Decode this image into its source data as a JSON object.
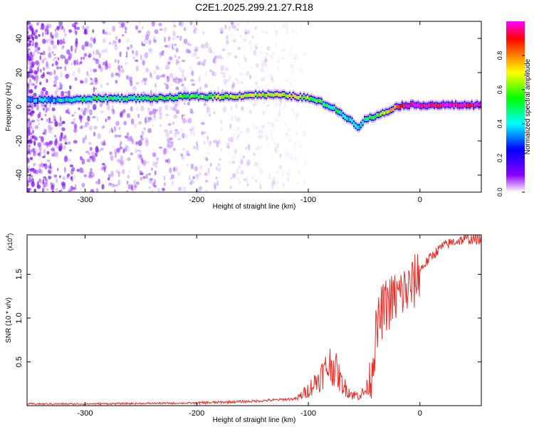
{
  "title": "C2E1.2025.299.21.27.R18",
  "chart_data": [
    {
      "type": "heatmap",
      "name": "spectrogram",
      "xlabel": "Height of straight line (km)",
      "ylabel": "Frequency (Hz)",
      "xlim": [
        -352,
        55
      ],
      "ylim": [
        -50,
        50
      ],
      "xticks": [
        -300,
        -200,
        -100,
        0
      ],
      "yticks": [
        -40,
        -20,
        0,
        20,
        40
      ],
      "ridge": {
        "description": "frequency of the peak spectral amplitude vs height",
        "x": [
          -350,
          -330,
          -310,
          -290,
          -270,
          -250,
          -230,
          -210,
          -190,
          -170,
          -150,
          -130,
          -110,
          -100,
          -90,
          -80,
          -70,
          -60,
          -55,
          -50,
          -45,
          -40,
          -35,
          -30,
          -25,
          -20,
          -15,
          -10,
          0,
          20,
          55
        ],
        "freq": [
          4,
          4,
          4,
          5,
          5,
          5,
          5,
          6,
          6,
          6,
          7,
          7,
          6,
          5,
          3,
          0,
          -4,
          -9,
          -12,
          -8,
          -6,
          -6,
          -4,
          -3,
          -1,
          0,
          1,
          1,
          1,
          1,
          1
        ],
        "amplitude": [
          0.35,
          0.35,
          0.4,
          0.45,
          0.45,
          0.45,
          0.5,
          0.5,
          0.55,
          0.6,
          0.6,
          0.6,
          0.65,
          0.55,
          0.5,
          0.45,
          0.4,
          0.35,
          0.35,
          0.45,
          0.5,
          0.5,
          0.55,
          0.6,
          0.7,
          0.8,
          0.9,
          0.95,
          0.95,
          0.95,
          0.95
        ]
      },
      "colorbar": {
        "label": "Normalized spectral amplitude",
        "min": 0.0,
        "max": 1.0,
        "ticks": [
          0.0,
          0.2,
          0.4,
          0.6,
          0.8
        ],
        "colors": [
          "#ffffff",
          "#8a00ff",
          "#0000ff",
          "#00ffff",
          "#00ff00",
          "#ffff00",
          "#ff8000",
          "#ff0000",
          "#ff00ff"
        ]
      }
    },
    {
      "type": "line",
      "name": "snr",
      "xlabel": "Height of straight line (km)",
      "ylabel": "SNR (10 * v/v)",
      "scale_label": "(x10",
      "scale_exp": "4",
      "scale_close": ")",
      "xlim": [
        -352,
        55
      ],
      "ylim": [
        0,
        1.95
      ],
      "xticks": [
        -300,
        -200,
        -100,
        0
      ],
      "yticks": [
        0.5,
        1.0,
        1.5
      ],
      "ytick_labels": [
        "0.5",
        "1.0",
        "1.5"
      ],
      "color": "#e8302a",
      "series": [
        {
          "name": "SNR",
          "x": [
            -352,
            -300,
            -200,
            -150,
            -110,
            -100,
            -90,
            -80,
            -75,
            -70,
            -65,
            -60,
            -55,
            -50,
            -45,
            -40,
            -35,
            -30,
            -25,
            -20,
            -15,
            -10,
            -5,
            0,
            10,
            20,
            30,
            40,
            55
          ],
          "y": [
            0.02,
            0.02,
            0.03,
            0.05,
            0.08,
            0.18,
            0.32,
            0.48,
            0.4,
            0.25,
            0.18,
            0.12,
            0.12,
            0.15,
            0.25,
            0.75,
            1.05,
            1.15,
            1.2,
            1.25,
            1.3,
            1.32,
            1.4,
            1.55,
            1.7,
            1.82,
            1.87,
            1.9,
            1.9
          ]
        }
      ]
    }
  ]
}
